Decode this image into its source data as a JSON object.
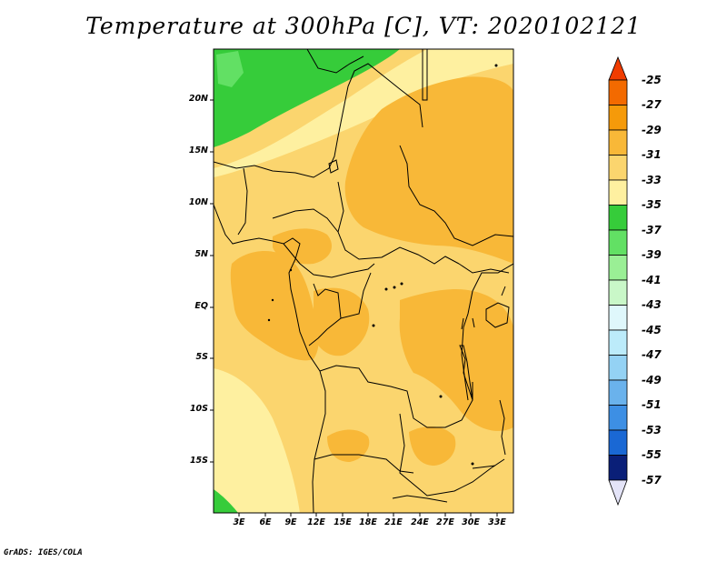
{
  "title": "Temperature at 300hPa [C], VT: 2020102121",
  "credit": "GrADS: IGES/COLA",
  "lat_labels": [
    "20N",
    "15N",
    "10N",
    "5N",
    "EQ",
    "5S",
    "10S",
    "15S"
  ],
  "lon_labels": [
    "3E",
    "6E",
    "9E",
    "12E",
    "15E",
    "18E",
    "21E",
    "24E",
    "27E",
    "30E",
    "33E"
  ],
  "colorbar": {
    "labels": [
      "-25",
      "-27",
      "-29",
      "-31",
      "-33",
      "-35",
      "-37",
      "-39",
      "-41",
      "-43",
      "-45",
      "-47",
      "-49",
      "-51",
      "-53",
      "-55",
      "-57"
    ],
    "colors": [
      "#f03c00",
      "#f36a00",
      "#f59a0a",
      "#f8b838",
      "#fbd56e",
      "#fef0a0",
      "#36cc3a",
      "#62e064",
      "#9aef95",
      "#c9f7c8",
      "#dff7fb",
      "#bcebfa",
      "#94d2f4",
      "#6ab2ec",
      "#3d8fe4",
      "#1a68d4",
      "#1446a8",
      "#0a1f78",
      "#e4e4f8"
    ]
  },
  "field_colors": {
    "t29": "#f8b838",
    "t31": "#fbd56e",
    "t33": "#fef0a0",
    "t35": "#36cc3a",
    "t37": "#62e064"
  }
}
